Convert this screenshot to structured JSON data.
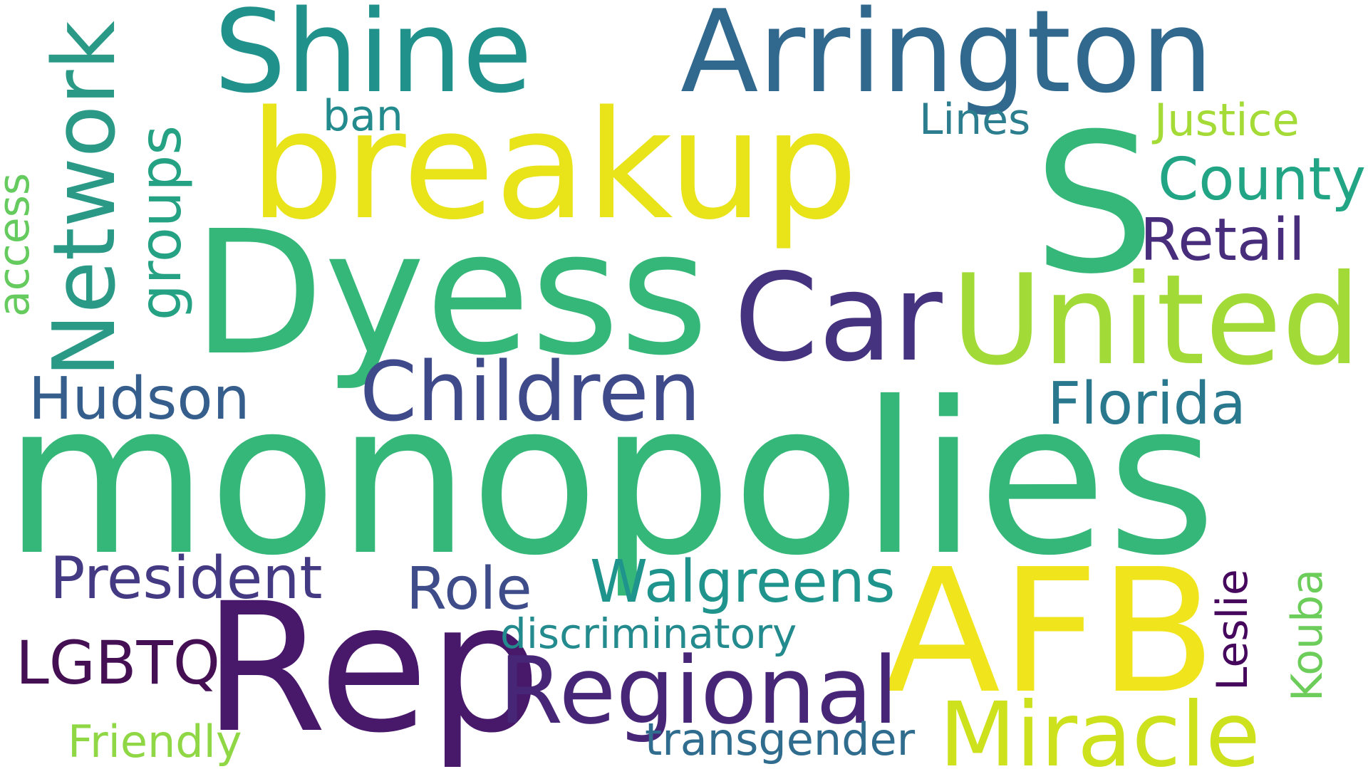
{
  "words": {
    "shine": {
      "text": "Shine",
      "color": "#21918c"
    },
    "arrington": {
      "text": "Arrington",
      "color": "#31688e"
    },
    "breakup": {
      "text": "breakup",
      "color": "#e8e419"
    },
    "s": {
      "text": "S",
      "color": "#35b779"
    },
    "dyess": {
      "text": "Dyess",
      "color": "#35b779"
    },
    "network": {
      "text": "Network",
      "color": "#2a9a87"
    },
    "groups": {
      "text": "groups",
      "color": "#25a283"
    },
    "access": {
      "text": "access",
      "color": "#65cb5e"
    },
    "ban": {
      "text": "ban",
      "color": "#238a8d"
    },
    "lines": {
      "text": "Lines",
      "color": "#2c7d8e"
    },
    "justice": {
      "text": "Justice",
      "color": "#a5db36"
    },
    "county": {
      "text": "County",
      "color": "#21a585"
    },
    "retail": {
      "text": "Retail",
      "color": "#472d7b"
    },
    "car": {
      "text": "Car",
      "color": "#46337f"
    },
    "united": {
      "text": "United",
      "color": "#a2da37"
    },
    "hudson": {
      "text": "Hudson",
      "color": "#355e8d"
    },
    "children": {
      "text": "Children",
      "color": "#3e4a89"
    },
    "florida": {
      "text": "Florida",
      "color": "#2a788e"
    },
    "monopolies": {
      "text": "monopolies",
      "color": "#35b779"
    },
    "president": {
      "text": "President",
      "color": "#443983"
    },
    "role": {
      "text": "Role",
      "color": "#3e4c8a"
    },
    "walgreens": {
      "text": "Walgreens",
      "color": "#1f948c"
    },
    "afb": {
      "text": "AFB",
      "color": "#f0e51d"
    },
    "leslie": {
      "text": "Leslie",
      "color": "#46085c"
    },
    "kouba": {
      "text": "Kouba",
      "color": "#6ccd5a"
    },
    "lgbtq": {
      "text": "LGBTQ",
      "color": "#440f53"
    },
    "rep": {
      "text": "Rep",
      "color": "#48186a"
    },
    "discriminatory": {
      "text": "discriminatory",
      "color": "#238a8d"
    },
    "regional": {
      "text": "Regional",
      "color": "#482677"
    },
    "miracle": {
      "text": "Miracle",
      "color": "#cde11d"
    },
    "friendly": {
      "text": "Friendly",
      "color": "#8fd744"
    },
    "transgender": {
      "text": "transgender",
      "color": "#2f6c8e"
    }
  }
}
